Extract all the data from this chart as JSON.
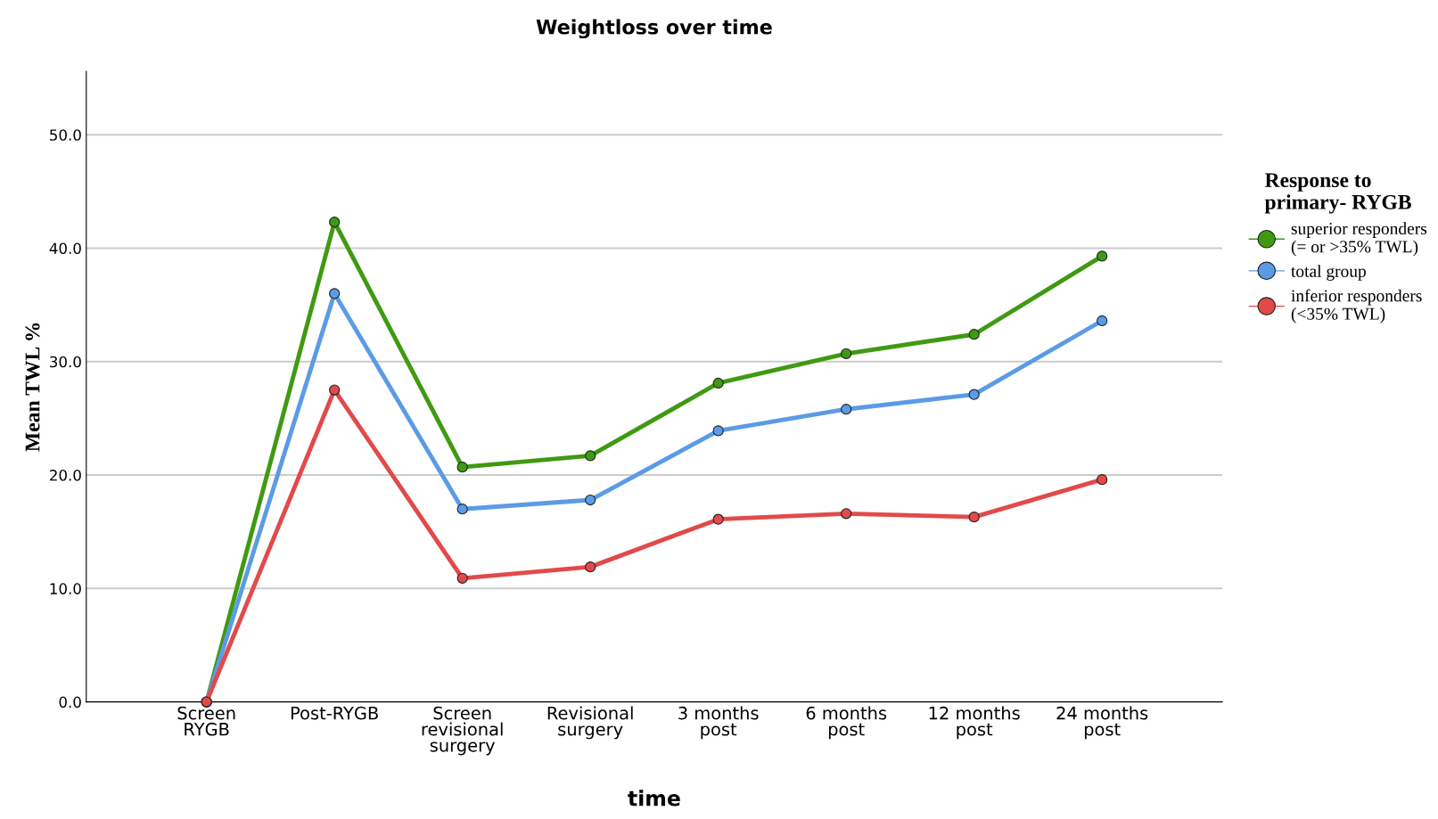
{
  "chart_data": {
    "type": "line",
    "title": "Weightloss over time",
    "xlabel": "time",
    "ylabel": "Mean TWL %",
    "legend_title": "Response to\nprimary- RYGB",
    "categories": [
      "Screen\nRYGB",
      "Post-RYGB",
      "Screen\nrevisional\nsurgery",
      "Revisional\nsurgery",
      "3 months\npost",
      "6 months\npost",
      "12 months\npost",
      "24 months\npost"
    ],
    "series": [
      {
        "name": "superior responders\n(= or >35% TWL)",
        "color": "#3f9a12",
        "values": [
          0.0,
          42.3,
          20.7,
          21.7,
          28.1,
          30.7,
          32.4,
          39.3
        ]
      },
      {
        "name": "total group",
        "color": "#5b9be6",
        "values": [
          0.0,
          36.0,
          17.0,
          17.8,
          23.9,
          25.8,
          27.1,
          33.6
        ]
      },
      {
        "name": "inferior responders\n(<35% TWL)",
        "color": "#e24a4a",
        "values": [
          0.0,
          27.5,
          10.9,
          11.9,
          16.1,
          16.6,
          16.3,
          19.6
        ]
      }
    ],
    "ylim": [
      0,
      55.6
    ],
    "yticks": [
      {
        "value": 0,
        "label": "0.0"
      },
      {
        "value": 10,
        "label": "10.0"
      },
      {
        "value": 20,
        "label": "20.0"
      },
      {
        "value": 30,
        "label": "30.0"
      },
      {
        "value": 40,
        "label": "40.0"
      },
      {
        "value": 50,
        "label": "50.0"
      }
    ],
    "grid": "y",
    "legend": "right",
    "marker": "circle",
    "line_style": "solid"
  }
}
